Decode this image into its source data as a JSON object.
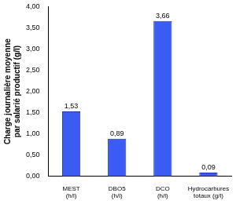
{
  "chart_data": {
    "type": "bar",
    "y_label": "Charge journalière moyenne par salarié productif (g/l)",
    "categories": [
      "MEST (h/l)",
      "DBO5 (h/l)",
      "DCO (h/l)",
      "Hydrocarbures totaux (g/l)"
    ],
    "values": [
      1.53,
      0.89,
      3.66,
      0.09
    ],
    "value_labels": [
      "1,53",
      "0,89",
      "3,66",
      "0,09"
    ],
    "data_labels": true,
    "color": "#3b5cf2",
    "ylim": [
      0,
      4
    ],
    "yticks": [
      {
        "value": 0,
        "label": "0,00"
      },
      {
        "value": 0.5,
        "label": "0,50"
      },
      {
        "value": 1,
        "label": "1,00"
      },
      {
        "value": 1.5,
        "label": "1,50"
      },
      {
        "value": 2,
        "label": "2,00"
      },
      {
        "value": 2.5,
        "label": "2,50"
      },
      {
        "value": 3,
        "label": "3,00"
      },
      {
        "value": 3.5,
        "label": "3,50"
      },
      {
        "value": 4,
        "label": "4,00"
      }
    ],
    "grid": false
  }
}
